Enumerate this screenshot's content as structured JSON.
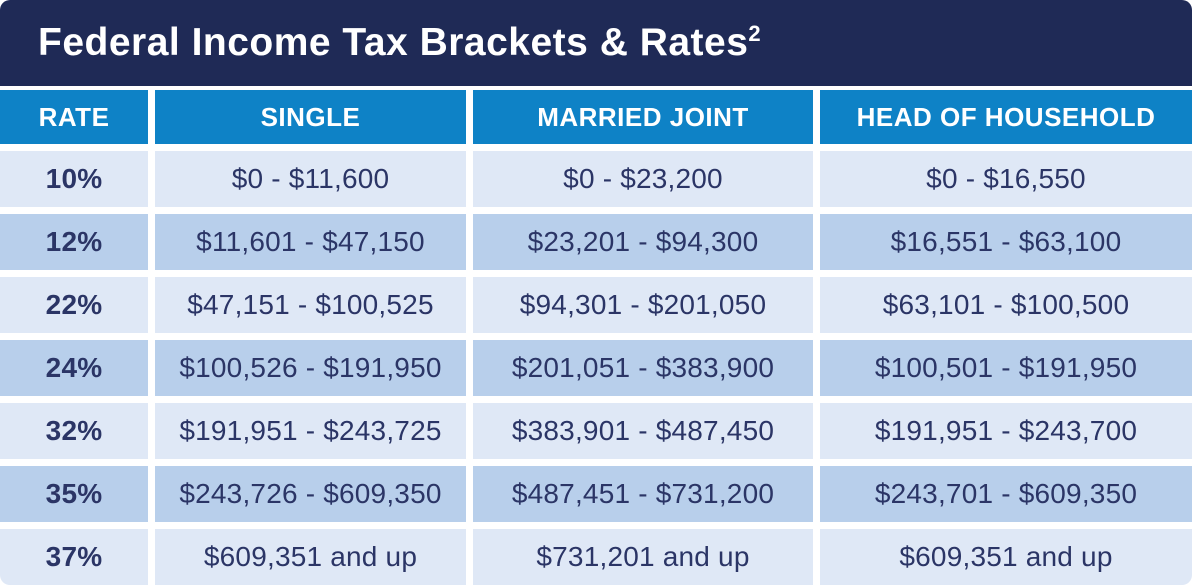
{
  "title": {
    "text": "Federal Income Tax Brackets & Rates",
    "superscript": "2"
  },
  "chart_data": {
    "type": "table",
    "title": "Federal Income Tax Brackets & Rates (2)",
    "columns": [
      "RATE",
      "SINGLE",
      "MARRIED JOINT",
      "HEAD OF HOUSEHOLD"
    ],
    "rows": [
      [
        "10%",
        "$0 - $11,600",
        "$0 - $23,200",
        "$0 - $16,550"
      ],
      [
        "12%",
        "$11,601 - $47,150",
        "$23,201 - $94,300",
        "$16,551 - $63,100"
      ],
      [
        "22%",
        "$47,151 - $100,525",
        "$94,301 - $201,050",
        "$63,101 - $100,500"
      ],
      [
        "24%",
        "$100,526 - $191,950",
        "$201,051 - $383,900",
        "$100,501 - $191,950"
      ],
      [
        "32%",
        "$191,951 - $243,725",
        "$383,901 - $487,450",
        "$191,951 - $243,700"
      ],
      [
        "35%",
        "$243,726 - $609,350",
        "$487,451 - $731,200",
        "$243,701 - $609,350"
      ],
      [
        "37%",
        "$609,351 and up",
        "$731,201 and up",
        "$609,351 and up"
      ]
    ]
  },
  "colors": {
    "title_bg": "#1f2a56",
    "title_text": "#ffffff",
    "header_bg": "#0e82c6",
    "header_text": "#ffffff",
    "row_light": "#dfe8f6",
    "row_dark": "#b8cfeb",
    "cell_text": "#2b3566"
  }
}
